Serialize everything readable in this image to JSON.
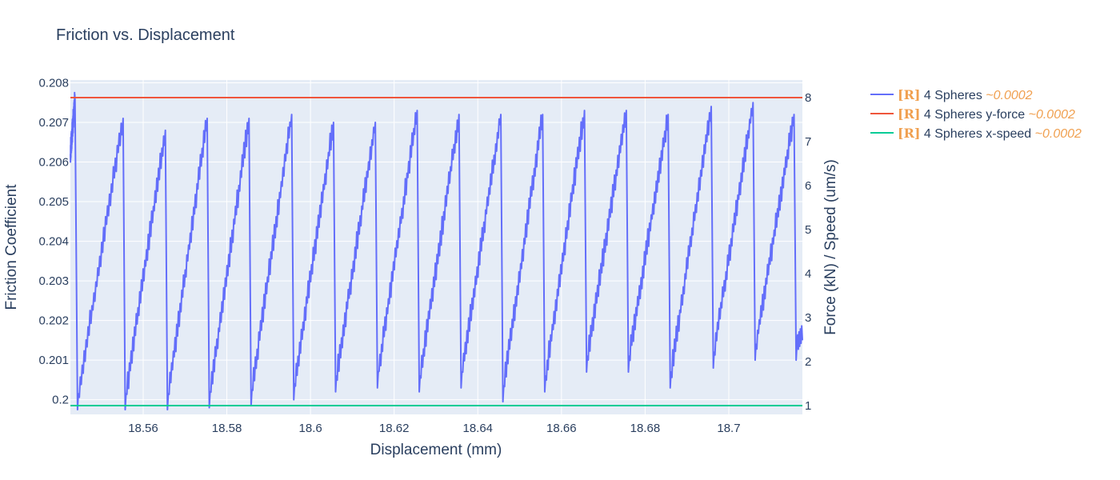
{
  "chart_data": {
    "type": "line",
    "title": "Friction vs. Displacement",
    "xlabel": "Displacement (mm)",
    "ylabel": "Friction Coefficient",
    "y2label": "Force (kN) / Speed (um/s)",
    "xlim": [
      18.5426,
      18.7176
    ],
    "ylim": [
      0.19963,
      0.20807
    ],
    "y2lim": [
      0.8,
      8.4
    ],
    "x_ticks": [
      "18.56",
      "18.58",
      "18.6",
      "18.62",
      "18.64",
      "18.66",
      "18.68",
      "18.7"
    ],
    "x_tick_values": [
      18.56,
      18.58,
      18.6,
      18.62,
      18.64,
      18.66,
      18.68,
      18.7
    ],
    "y_ticks": [
      "0.2",
      "0.201",
      "0.202",
      "0.203",
      "0.204",
      "0.205",
      "0.206",
      "0.207",
      "0.208"
    ],
    "y_tick_values": [
      0.2,
      0.201,
      0.202,
      0.203,
      0.204,
      0.205,
      0.206,
      0.207,
      0.208
    ],
    "y2_ticks": [
      "1",
      "2",
      "3",
      "4",
      "5",
      "6",
      "7",
      "8"
    ],
    "y2_tick_values": [
      1,
      2,
      3,
      4,
      5,
      6,
      7,
      8
    ],
    "grid": true,
    "legend_position": "top-right outside",
    "series": [
      {
        "name": "4 Spheres",
        "prefix": "[R]",
        "suffix": "~0.0002",
        "color": "#636efa",
        "axis": "y",
        "style": "sawtooth",
        "start": [
          18.5426,
          0.2062
        ],
        "cycles": [
          {
            "peak_x": 18.5437,
            "peak_y": 0.2076,
            "trough_x": 18.5443,
            "trough_y": 0.19975
          },
          {
            "peak_x": 18.5552,
            "peak_y": 0.2071,
            "trough_x": 18.5557,
            "trough_y": 0.19975
          },
          {
            "peak_x": 18.5653,
            "peak_y": 0.2068,
            "trough_x": 18.5658,
            "trough_y": 0.19975
          },
          {
            "peak_x": 18.5753,
            "peak_y": 0.2071,
            "trough_x": 18.5758,
            "trough_y": 0.1998
          },
          {
            "peak_x": 18.5853,
            "peak_y": 0.2071,
            "trough_x": 18.5858,
            "trough_y": 0.19985
          },
          {
            "peak_x": 18.5955,
            "peak_y": 0.2072,
            "trough_x": 18.596,
            "trough_y": 0.2
          },
          {
            "peak_x": 18.6055,
            "peak_y": 0.207,
            "trough_x": 18.606,
            "trough_y": 0.2002
          },
          {
            "peak_x": 18.6155,
            "peak_y": 0.207,
            "trough_x": 18.616,
            "trough_y": 0.2003
          },
          {
            "peak_x": 18.6255,
            "peak_y": 0.2073,
            "trough_x": 18.626,
            "trough_y": 0.2002
          },
          {
            "peak_x": 18.6355,
            "peak_y": 0.2072,
            "trough_x": 18.636,
            "trough_y": 0.2003
          },
          {
            "peak_x": 18.6455,
            "peak_y": 0.2072,
            "trough_x": 18.646,
            "trough_y": 0.19995
          },
          {
            "peak_x": 18.6555,
            "peak_y": 0.2072,
            "trough_x": 18.656,
            "trough_y": 0.2002
          },
          {
            "peak_x": 18.6655,
            "peak_y": 0.2073,
            "trough_x": 18.666,
            "trough_y": 0.2007
          },
          {
            "peak_x": 18.6755,
            "peak_y": 0.2073,
            "trough_x": 18.676,
            "trough_y": 0.2007
          },
          {
            "peak_x": 18.6855,
            "peak_y": 0.2072,
            "trough_x": 18.686,
            "trough_y": 0.2003
          },
          {
            "peak_x": 18.6958,
            "peak_y": 0.2074,
            "trough_x": 18.6963,
            "trough_y": 0.2008
          },
          {
            "peak_x": 18.7058,
            "peak_y": 0.2075,
            "trough_x": 18.7063,
            "trough_y": 0.201
          },
          {
            "peak_x": 18.7156,
            "peak_y": 0.2072,
            "trough_x": 18.7161,
            "trough_y": 0.201
          }
        ],
        "end": [
          18.7176,
          0.2017
        ]
      },
      {
        "name": "4 Spheres y-force",
        "prefix": "[R]",
        "suffix": "~0.0002",
        "color": "#ef553b",
        "axis": "y2",
        "x": [
          18.5426,
          18.7176
        ],
        "y": [
          8.0,
          8.0
        ]
      },
      {
        "name": "4 Spheres x-speed",
        "prefix": "[R]",
        "suffix": "~0.0002",
        "color": "#00cc96",
        "axis": "y2",
        "x": [
          18.5426,
          18.7176
        ],
        "y": [
          1.0,
          1.0
        ]
      }
    ]
  }
}
